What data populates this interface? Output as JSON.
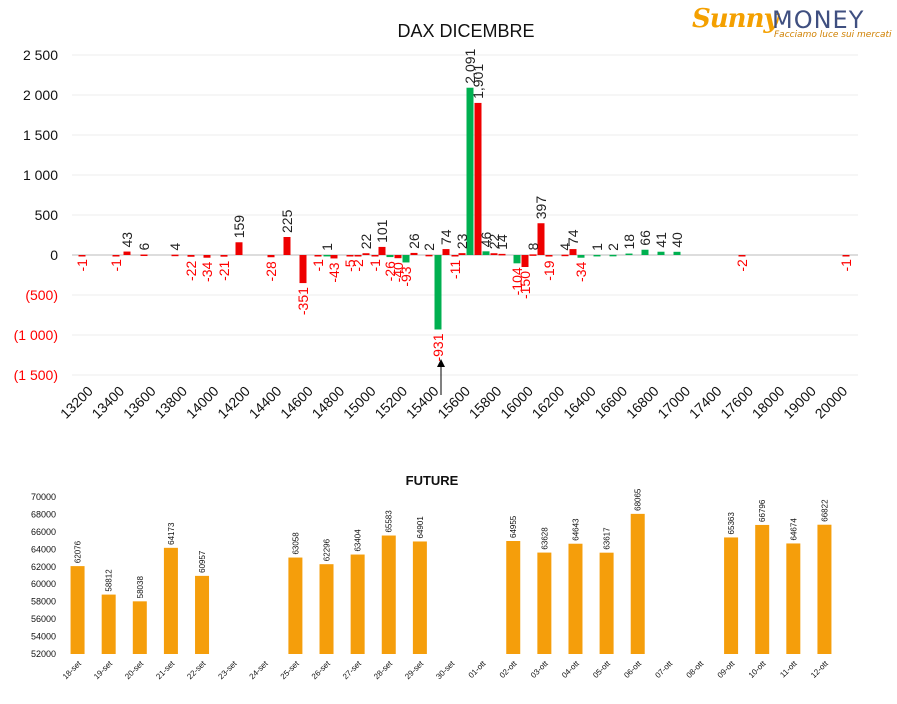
{
  "logo": {
    "brand1": "Sunny",
    "brand2": "MONEY",
    "tagline": "Facciamo luce sui mercati"
  },
  "chart_data": [
    {
      "type": "bar",
      "title": "DAX DICEMBRE",
      "ylim": [
        -1500,
        2500
      ],
      "yticks": [
        2500,
        2000,
        1500,
        1000,
        500,
        0,
        -500,
        -1000,
        -1500
      ],
      "ytick_labels": [
        "2 500",
        "2 000",
        "1 500",
        "1 000",
        "500",
        "0",
        "(500)",
        "(1 000)",
        "(1 500)"
      ],
      "xtick_labels": [
        "13200",
        "13400",
        "13600",
        "13800",
        "14000",
        "14200",
        "14400",
        "14600",
        "14800",
        "15000",
        "15200",
        "15400",
        "15600",
        "15800",
        "16000",
        "16200",
        "16400",
        "16600",
        "16800",
        "17000",
        "17400",
        "17600",
        "18000",
        "19000",
        "20000"
      ],
      "colors": {
        "positive_label": "#222222",
        "negative_label": "#ff0000",
        "red_bar": "#ee0000",
        "green_bar": "#00b050"
      },
      "bars": [
        {
          "x": 82,
          "value": -1,
          "color": "red"
        },
        {
          "x": 116,
          "value": -1,
          "color": "red"
        },
        {
          "x": 127,
          "value": 43,
          "color": "red"
        },
        {
          "x": 144,
          "value": 6,
          "color": "red"
        },
        {
          "x": 175,
          "value": 4,
          "color": "red"
        },
        {
          "x": 191,
          "value": -22,
          "color": "red"
        },
        {
          "x": 207,
          "value": -34,
          "color": "red"
        },
        {
          "x": 224,
          "value": -21,
          "color": "red"
        },
        {
          "x": 239,
          "value": 159,
          "color": "red"
        },
        {
          "x": 271,
          "value": -28,
          "color": "red"
        },
        {
          "x": 287,
          "value": 225,
          "color": "red"
        },
        {
          "x": 303,
          "value": -351,
          "color": "red"
        },
        {
          "x": 318,
          "value": -1,
          "color": "red"
        },
        {
          "x": 327,
          "value": 1,
          "color": "green"
        },
        {
          "x": 334,
          "value": -43,
          "color": "red"
        },
        {
          "x": 350,
          "value": -5,
          "color": "red"
        },
        {
          "x": 358,
          "value": -2,
          "color": "red"
        },
        {
          "x": 366,
          "value": 22,
          "color": "red"
        },
        {
          "x": 375,
          "value": -1,
          "color": "red"
        },
        {
          "x": 382,
          "value": 101,
          "color": "red"
        },
        {
          "x": 390,
          "value": -26,
          "color": "green"
        },
        {
          "x": 398,
          "value": -40,
          "color": "red"
        },
        {
          "x": 406,
          "value": -93,
          "color": "green"
        },
        {
          "x": 414,
          "value": 26,
          "color": "red"
        },
        {
          "x": 429,
          "value": 2,
          "color": "red"
        },
        {
          "x": 438,
          "value": -931,
          "color": "green"
        },
        {
          "x": 446,
          "value": 74,
          "color": "red"
        },
        {
          "x": 455,
          "value": -11,
          "color": "red"
        },
        {
          "x": 462,
          "value": 23,
          "color": "red"
        },
        {
          "x": 470,
          "value": 2091,
          "color": "green"
        },
        {
          "x": 478,
          "value": 1901,
          "color": "red"
        },
        {
          "x": 486,
          "value": 46,
          "color": "green"
        },
        {
          "x": 494,
          "value": 22,
          "color": "red"
        },
        {
          "x": 502,
          "value": 14,
          "color": "red"
        },
        {
          "x": 517,
          "value": -104,
          "color": "green"
        },
        {
          "x": 525,
          "value": -150,
          "color": "red"
        },
        {
          "x": 533,
          "value": 8,
          "color": "red"
        },
        {
          "x": 541,
          "value": 397,
          "color": "red"
        },
        {
          "x": 549,
          "value": -19,
          "color": "red"
        },
        {
          "x": 565,
          "value": 4,
          "color": "red"
        },
        {
          "x": 573,
          "value": 74,
          "color": "red"
        },
        {
          "x": 581,
          "value": -34,
          "color": "green"
        },
        {
          "x": 597,
          "value": 1,
          "color": "green"
        },
        {
          "x": 613,
          "value": 2,
          "color": "green"
        },
        {
          "x": 629,
          "value": 18,
          "color": "green"
        },
        {
          "x": 645,
          "value": 66,
          "color": "green"
        },
        {
          "x": 661,
          "value": 41,
          "color": "green"
        },
        {
          "x": 677,
          "value": 40,
          "color": "green"
        },
        {
          "x": 742,
          "value": -2,
          "color": "red"
        },
        {
          "x": 846,
          "value": -1,
          "color": "red"
        }
      ]
    },
    {
      "type": "bar",
      "title": "FUTURE",
      "ylim": [
        52000,
        70000
      ],
      "yticks": [
        70000,
        68000,
        66000,
        64000,
        62000,
        60000,
        58000,
        56000,
        54000,
        52000
      ],
      "color": "#f59e0b",
      "categories": [
        "18-set",
        "19-set",
        "20-set",
        "21-set",
        "22-set",
        "23-set",
        "24-set",
        "25-set",
        "26-set",
        "27-set",
        "28-set",
        "29-set",
        "30-set",
        "01-ott",
        "02-ott",
        "03-ott",
        "04-ott",
        "05-ott",
        "06-ott",
        "07-ott",
        "08-ott",
        "09-ott",
        "10-ott",
        "11-ott",
        "12-ott"
      ],
      "values": [
        62076,
        58812,
        58038,
        64173,
        60957,
        null,
        null,
        63058,
        62296,
        63404,
        65583,
        64901,
        null,
        null,
        64955,
        63628,
        64643,
        63617,
        68065,
        null,
        null,
        65363,
        66796,
        64674,
        66822
      ]
    }
  ]
}
